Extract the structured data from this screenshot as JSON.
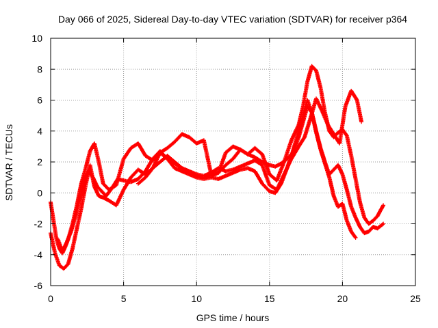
{
  "chart_data": {
    "type": "scatter",
    "title": "Day 066 of 2025, Sidereal Day-to-day VTEC variation (SDTVAR) for receiver p364",
    "xlabel": "GPS time / hours",
    "ylabel": "SDTVAR / TECUs",
    "xlim": [
      0,
      25
    ],
    "ylim": [
      -6,
      10
    ],
    "xticks": [
      0,
      5,
      10,
      15,
      20,
      25
    ],
    "yticks": [
      -6,
      -4,
      -2,
      0,
      2,
      4,
      6,
      8,
      10
    ],
    "xtick_labels": [
      "0",
      "5",
      "10",
      "15",
      "20",
      "25"
    ],
    "ytick_labels": [
      "-6",
      "-4",
      "-2",
      "0",
      "2",
      "4",
      "6",
      "8",
      "10"
    ],
    "grid": true,
    "marker": "+",
    "color": "#ff0000",
    "series": [
      {
        "x": [
          0.0,
          0.2,
          0.4,
          0.6,
          0.8,
          1.0,
          1.2,
          1.5,
          1.8,
          2.1,
          2.4,
          2.7,
          3.0,
          3.3,
          3.6,
          4.0,
          4.5,
          5.0,
          5.5,
          6.0,
          6.5,
          7.0,
          7.5,
          8.0,
          8.5,
          9.0,
          9.5,
          10.0,
          10.5,
          11.0,
          11.5,
          12.0,
          12.5,
          13.0,
          13.5,
          14.0,
          14.5,
          15.0,
          15.5,
          16.0,
          16.5,
          17.0,
          17.3,
          17.6,
          17.9,
          18.2,
          18.5,
          18.8,
          19.1,
          19.4,
          19.7,
          20.0,
          20.3,
          20.6,
          20.9,
          21.2,
          21.5,
          21.8,
          22.1,
          22.4,
          22.8
        ],
        "y": [
          -0.6,
          -1.8,
          -3.0,
          -3.6,
          -3.9,
          -3.5,
          -3.0,
          -2.0,
          -0.8,
          0.6,
          1.6,
          2.7,
          3.2,
          2.0,
          0.6,
          0.2,
          0.5,
          2.2,
          2.9,
          3.2,
          2.4,
          2.1,
          2.6,
          2.9,
          3.3,
          3.8,
          3.6,
          3.2,
          3.4,
          1.2,
          1.3,
          1.8,
          2.2,
          2.8,
          2.5,
          2.9,
          2.5,
          1.2,
          0.8,
          2.0,
          3.4,
          4.4,
          5.6,
          7.2,
          8.2,
          7.9,
          6.8,
          5.2,
          4.0,
          3.6,
          3.9,
          4.1,
          3.7,
          2.4,
          0.9,
          -0.6,
          -1.6,
          -2.0,
          -1.8,
          -1.5,
          -0.8
        ]
      },
      {
        "x": [
          0.0,
          0.3,
          0.6,
          0.9,
          1.2,
          1.5,
          1.8,
          2.1,
          2.4,
          2.7,
          3.0,
          3.3,
          3.6,
          4.0,
          4.5,
          5.0,
          5.5,
          6.0,
          6.5,
          7.0,
          7.5,
          8.0,
          8.5,
          9.0,
          9.5,
          10.0,
          10.5,
          11.0,
          11.5,
          12.0,
          12.5,
          13.0,
          13.5,
          14.0,
          14.5,
          15.0,
          15.5,
          16.0,
          16.5,
          17.0,
          17.4,
          17.8,
          18.2,
          18.6,
          19.0,
          19.4,
          19.8,
          20.2,
          20.6,
          21.0,
          21.3
        ],
        "y": [
          -2.6,
          -3.9,
          -4.7,
          -4.9,
          -4.6,
          -3.6,
          -2.3,
          -1.0,
          0.5,
          1.8,
          0.4,
          -0.2,
          -0.3,
          -0.5,
          -0.8,
          0.2,
          1.0,
          1.5,
          1.2,
          1.6,
          2.0,
          2.4,
          2.0,
          1.6,
          1.4,
          1.2,
          1.1,
          1.3,
          1.6,
          1.4,
          1.5,
          1.7,
          1.9,
          2.1,
          1.8,
          0.5,
          0.2,
          1.2,
          2.2,
          3.0,
          3.6,
          4.8,
          6.1,
          5.3,
          4.4,
          3.8,
          3.2,
          5.6,
          6.6,
          6.0,
          4.6
        ]
      },
      {
        "x": [
          0.5,
          0.8,
          1.1,
          1.4,
          1.7,
          2.0,
          2.3,
          2.6,
          2.9,
          3.2,
          3.5,
          3.8,
          4.2,
          4.6,
          5.0,
          5.5,
          6.0,
          6.5,
          7.0,
          7.5,
          8.0,
          8.5,
          9.0,
          9.5,
          10.0,
          10.5,
          11.0,
          11.5,
          12.0,
          12.5,
          13.0,
          13.5,
          14.0,
          14.5,
          15.0,
          15.4,
          15.8,
          16.2,
          16.6,
          17.0,
          17.3,
          17.6,
          17.9,
          18.2,
          18.5,
          18.8,
          19.1,
          19.4,
          19.7,
          20.0,
          20.3,
          20.6,
          20.9,
          21.2,
          21.5,
          21.8,
          22.1,
          22.4,
          22.8
        ],
        "y": [
          -3.0,
          -3.8,
          -3.2,
          -2.5,
          -1.5,
          -0.4,
          0.8,
          1.4,
          1.0,
          0.4,
          0.1,
          -0.2,
          0.3,
          0.9,
          0.8,
          0.7,
          0.9,
          1.4,
          2.2,
          2.7,
          2.2,
          1.6,
          1.4,
          1.2,
          1.0,
          0.9,
          1.0,
          0.9,
          1.1,
          1.3,
          1.5,
          1.6,
          1.4,
          0.6,
          0.1,
          0.0,
          0.6,
          1.6,
          2.7,
          4.0,
          5.0,
          6.0,
          5.2,
          4.0,
          2.9,
          2.0,
          1.2,
          1.5,
          1.8,
          1.2,
          0.2,
          -0.9,
          -1.6,
          -2.2,
          -2.6,
          -2.5,
          -2.2,
          -2.3,
          -2.0
        ]
      },
      {
        "x": [
          6.0,
          6.5,
          7.0,
          7.5,
          8.0,
          8.5,
          9.0,
          9.5,
          10.0,
          10.5,
          11.0,
          11.5,
          12.0,
          12.5,
          13.0,
          13.5,
          14.0,
          14.5,
          15.0,
          15.4,
          15.8,
          16.2,
          16.6,
          17.0,
          17.3,
          17.6,
          17.9,
          18.2,
          18.5,
          18.8,
          19.1,
          19.4,
          19.7,
          20.0,
          20.3,
          20.6,
          20.9
        ],
        "y": [
          0.6,
          1.0,
          1.6,
          2.6,
          2.2,
          1.9,
          1.6,
          1.3,
          1.1,
          1.0,
          1.1,
          1.3,
          2.6,
          3.0,
          2.8,
          2.5,
          2.3,
          2.0,
          1.8,
          1.7,
          1.9,
          2.2,
          2.6,
          3.6,
          4.6,
          5.6,
          5.2,
          3.9,
          2.8,
          1.9,
          1.0,
          -0.2,
          -0.9,
          -0.7,
          -1.8,
          -2.5,
          -2.9
        ]
      }
    ]
  }
}
